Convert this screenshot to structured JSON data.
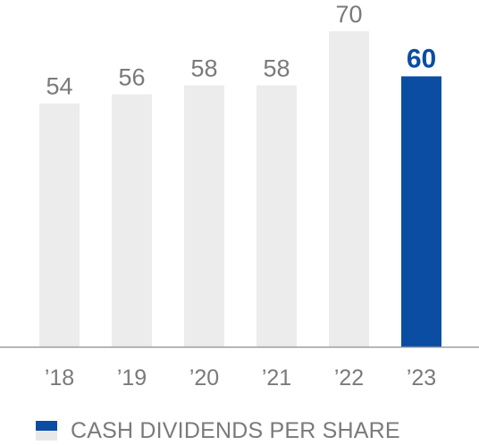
{
  "chart_data": {
    "type": "bar",
    "categories": [
      "’18",
      "’19",
      "’20",
      "’21",
      "’22",
      "’23"
    ],
    "series": [
      {
        "name": "CASH DIVIDENDS PER SHARE",
        "values": [
          54,
          56,
          58,
          58,
          70,
          60
        ]
      }
    ],
    "highlight_index": 5,
    "ylim": [
      0,
      70
    ],
    "grid": false,
    "legend": "bottom-left",
    "colors": {
      "default_bar": "#ececec",
      "highlight_bar": "#0a4da2",
      "axis": "#9a9a9a",
      "label": "#7a7a7a"
    }
  }
}
